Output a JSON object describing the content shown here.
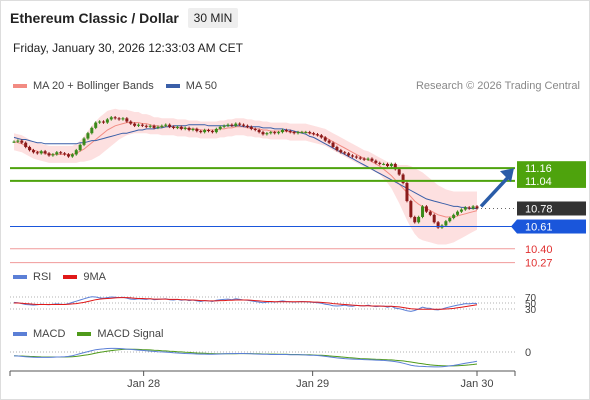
{
  "header": {
    "title": "Ethereum Classic / Dollar",
    "timeframe": "30 MIN",
    "timestamp": "Friday, January 30, 2026 12:33:03 AM CET",
    "credit": "Research © 2026 Trading Central"
  },
  "legends": {
    "price": [
      {
        "label": "MA 20 + Bollinger Bands",
        "color": "#f28b82"
      },
      {
        "label": "MA 50",
        "color": "#3a5fa8"
      }
    ],
    "rsi": [
      {
        "label": "RSI",
        "color": "#5b7fd6"
      },
      {
        "label": "9MA",
        "color": "#e01818"
      }
    ],
    "macd": [
      {
        "label": "MACD",
        "color": "#5b7fd6"
      },
      {
        "label": "MACD Signal",
        "color": "#4f9a1a"
      }
    ]
  },
  "colors": {
    "up": "#3a8a1a",
    "down": "#8b1a1a",
    "band_fill": "#fde0e0",
    "ma20": "#f28b82",
    "ma50": "#3a5fa8",
    "resistance": "#4ea30d",
    "support_blue": "#1a56db",
    "support_red": "#f19a9a",
    "current": "#333333",
    "arrow": "#2a5ca8"
  },
  "chart_data": [
    {
      "type": "candlestick",
      "name": "price",
      "x_ticks": [
        "Jan 28",
        "Jan 29",
        "Jan 30"
      ],
      "ylim": [
        10.2,
        11.85
      ],
      "levels": [
        {
          "value": 11.16,
          "label": "11.16",
          "kind": "resistance"
        },
        {
          "value": 11.04,
          "label": "11.04",
          "kind": "resistance"
        },
        {
          "value": 10.78,
          "label": "10.78",
          "kind": "current"
        },
        {
          "value": 10.61,
          "label": "10.61",
          "kind": "support"
        },
        {
          "value": 10.4,
          "label": "10.40",
          "kind": "support_minor"
        },
        {
          "value": 10.27,
          "label": "10.27",
          "kind": "support_minor"
        }
      ],
      "close": [
        11.41,
        11.42,
        11.4,
        11.36,
        11.33,
        11.31,
        11.3,
        11.32,
        11.3,
        11.28,
        11.29,
        11.31,
        11.3,
        11.29,
        11.27,
        11.29,
        11.33,
        11.38,
        11.44,
        11.49,
        11.54,
        11.59,
        11.6,
        11.59,
        11.62,
        11.64,
        11.63,
        11.62,
        11.63,
        11.6,
        11.58,
        11.56,
        11.57,
        11.56,
        11.55,
        11.56,
        11.54,
        11.55,
        11.56,
        11.57,
        11.55,
        11.54,
        11.55,
        11.53,
        11.54,
        11.52,
        11.53,
        11.51,
        11.5,
        11.52,
        11.51,
        11.5,
        11.53,
        11.55,
        11.56,
        11.57,
        11.56,
        11.58,
        11.57,
        11.56,
        11.55,
        11.53,
        11.52,
        11.5,
        11.48,
        11.49,
        11.5,
        11.49,
        11.5,
        11.52,
        11.51,
        11.5,
        11.49,
        11.5,
        11.5,
        11.5,
        11.49,
        11.48,
        11.47,
        11.45,
        11.42,
        11.4,
        11.36,
        11.33,
        11.31,
        11.3,
        11.28,
        11.27,
        11.26,
        11.25,
        11.24,
        11.25,
        11.23,
        11.21,
        11.2,
        11.2,
        11.18,
        11.2,
        11.15,
        11.1,
        11.02,
        10.85,
        10.7,
        10.65,
        10.7,
        10.8,
        10.75,
        10.72,
        10.65,
        10.6,
        10.62,
        10.66,
        10.69,
        10.72,
        10.75,
        10.77,
        10.79,
        10.78,
        10.8,
        10.78
      ],
      "ma20": [
        11.41,
        11.4,
        11.39,
        11.37,
        11.35,
        11.33,
        11.32,
        11.31,
        11.3,
        11.29,
        11.29,
        11.29,
        11.29,
        11.29,
        11.29,
        11.29,
        11.3,
        11.32,
        11.34,
        11.37,
        11.4,
        11.43,
        11.46,
        11.49,
        11.52,
        11.54,
        11.56,
        11.57,
        11.58,
        11.59,
        11.59,
        11.59,
        11.59,
        11.58,
        11.58,
        11.57,
        11.56,
        11.56,
        11.55,
        11.55,
        11.55,
        11.55,
        11.54,
        11.54,
        11.54,
        11.53,
        11.53,
        11.53,
        11.52,
        11.52,
        11.52,
        11.52,
        11.52,
        11.53,
        11.53,
        11.54,
        11.54,
        11.55,
        11.55,
        11.55,
        11.54,
        11.54,
        11.53,
        11.53,
        11.52,
        11.52,
        11.51,
        11.51,
        11.51,
        11.51,
        11.51,
        11.5,
        11.5,
        11.5,
        11.5,
        11.5,
        11.49,
        11.48,
        11.47,
        11.46,
        11.45,
        11.43,
        11.41,
        11.39,
        11.37,
        11.35,
        11.33,
        11.31,
        11.29,
        11.27,
        11.25,
        11.24,
        11.22,
        11.2,
        11.18,
        11.15,
        11.12,
        11.09,
        11.05,
        11.01,
        10.97,
        10.93,
        10.89,
        10.85,
        10.82,
        10.8,
        10.78,
        10.76,
        10.74,
        10.72,
        10.71,
        10.7,
        10.7,
        10.7,
        10.71,
        10.72,
        10.73,
        10.74,
        10.75,
        10.76
      ],
      "band_width": [
        0.08,
        0.08,
        0.08,
        0.08,
        0.08,
        0.08,
        0.08,
        0.08,
        0.08,
        0.08,
        0.08,
        0.08,
        0.08,
        0.08,
        0.08,
        0.08,
        0.09,
        0.1,
        0.12,
        0.14,
        0.16,
        0.17,
        0.18,
        0.18,
        0.18,
        0.17,
        0.16,
        0.14,
        0.13,
        0.12,
        0.11,
        0.1,
        0.1,
        0.09,
        0.09,
        0.09,
        0.08,
        0.08,
        0.08,
        0.08,
        0.08,
        0.08,
        0.08,
        0.08,
        0.08,
        0.08,
        0.08,
        0.08,
        0.08,
        0.08,
        0.08,
        0.08,
        0.08,
        0.08,
        0.08,
        0.08,
        0.08,
        0.08,
        0.08,
        0.08,
        0.08,
        0.08,
        0.08,
        0.08,
        0.08,
        0.08,
        0.08,
        0.08,
        0.08,
        0.08,
        0.08,
        0.08,
        0.08,
        0.08,
        0.08,
        0.08,
        0.08,
        0.08,
        0.08,
        0.08,
        0.08,
        0.08,
        0.08,
        0.08,
        0.08,
        0.08,
        0.08,
        0.08,
        0.08,
        0.08,
        0.08,
        0.08,
        0.08,
        0.08,
        0.08,
        0.09,
        0.1,
        0.12,
        0.15,
        0.18,
        0.22,
        0.26,
        0.29,
        0.31,
        0.32,
        0.32,
        0.31,
        0.3,
        0.29,
        0.28,
        0.27,
        0.26,
        0.25,
        0.24,
        0.23,
        0.22,
        0.21,
        0.2,
        0.19,
        0.18
      ],
      "ma50": [
        11.45,
        11.44,
        11.43,
        11.43,
        11.42,
        11.41,
        11.4,
        11.4,
        11.39,
        11.39,
        11.39,
        11.39,
        11.39,
        11.39,
        11.39,
        11.39,
        11.39,
        11.4,
        11.4,
        11.41,
        11.42,
        11.42,
        11.43,
        11.44,
        11.45,
        11.46,
        11.47,
        11.48,
        11.49,
        11.49,
        11.5,
        11.51,
        11.52,
        11.52,
        11.53,
        11.53,
        11.53,
        11.54,
        11.54,
        11.55,
        11.55,
        11.56,
        11.56,
        11.56,
        11.56,
        11.57,
        11.57,
        11.57,
        11.57,
        11.57,
        11.56,
        11.56,
        11.56,
        11.56,
        11.56,
        11.56,
        11.56,
        11.56,
        11.56,
        11.55,
        11.55,
        11.55,
        11.55,
        11.55,
        11.54,
        11.54,
        11.54,
        11.53,
        11.53,
        11.53,
        11.52,
        11.52,
        11.51,
        11.5,
        11.49,
        11.48,
        11.46,
        11.45,
        11.43,
        11.41,
        11.39,
        11.37,
        11.35,
        11.33,
        11.31,
        11.29,
        11.27,
        11.25,
        11.23,
        11.21,
        11.19,
        11.17,
        11.15,
        11.13,
        11.11,
        11.09,
        11.07,
        11.05,
        11.03,
        11.01,
        10.99,
        10.97,
        10.95,
        10.93,
        10.91,
        10.89,
        10.87,
        10.86,
        10.85,
        10.84,
        10.83,
        10.82,
        10.81,
        10.8,
        10.8,
        10.79,
        10.79,
        10.78,
        10.78,
        10.78
      ],
      "forecast": {
        "from": 10.78,
        "to": 11.16
      }
    },
    {
      "type": "line",
      "name": "RSI",
      "levels": [
        "70",
        "50",
        "30"
      ],
      "ylim": [
        0,
        100
      ],
      "series": [
        {
          "name": "RSI",
          "values": [
            52,
            51,
            48,
            45,
            44,
            43,
            44,
            46,
            45,
            44,
            46,
            47,
            46,
            45,
            48,
            52,
            56,
            60,
            64,
            68,
            71,
            70,
            67,
            66,
            68,
            70,
            69,
            68,
            69,
            66,
            63,
            62,
            64,
            63,
            62,
            64,
            61,
            62,
            63,
            64,
            61,
            60,
            62,
            59,
            61,
            58,
            60,
            57,
            55,
            58,
            57,
            55,
            59,
            61,
            62,
            63,
            61,
            64,
            62,
            60,
            59,
            57,
            55,
            53,
            51,
            53,
            54,
            53,
            55,
            57,
            55,
            54,
            53,
            54,
            55,
            54,
            53,
            52,
            51,
            49,
            46,
            44,
            41,
            40,
            41,
            43,
            40,
            39,
            42,
            41,
            40,
            43,
            40,
            38,
            39,
            40,
            36,
            39,
            33,
            31,
            28,
            24,
            22,
            25,
            30,
            36,
            33,
            32,
            28,
            27,
            30,
            34,
            37,
            40,
            43,
            45,
            48,
            47,
            49,
            48
          ]
        },
        {
          "name": "9MA",
          "values": [
            50,
            50,
            49,
            48,
            47,
            46,
            45,
            45,
            45,
            45,
            45,
            45,
            45,
            45,
            46,
            47,
            48,
            50,
            52,
            55,
            58,
            61,
            63,
            64,
            65,
            66,
            67,
            68,
            68,
            68,
            67,
            66,
            65,
            65,
            64,
            64,
            63,
            63,
            63,
            63,
            62,
            62,
            62,
            61,
            61,
            60,
            60,
            59,
            58,
            58,
            57,
            57,
            57,
            58,
            58,
            59,
            59,
            60,
            60,
            60,
            60,
            59,
            58,
            57,
            56,
            55,
            55,
            54,
            54,
            54,
            54,
            54,
            54,
            54,
            54,
            54,
            54,
            53,
            53,
            52,
            51,
            50,
            48,
            47,
            46,
            45,
            44,
            43,
            42,
            41,
            41,
            41,
            40,
            40,
            40,
            39,
            39,
            39,
            38,
            37,
            35,
            33,
            31,
            30,
            29,
            29,
            29,
            29,
            29,
            29,
            29,
            30,
            31,
            32,
            34,
            36,
            38,
            40,
            42,
            44
          ]
        }
      ]
    },
    {
      "type": "line",
      "name": "MACD",
      "levels": [
        "0"
      ],
      "ylim": [
        -0.1,
        0.1
      ],
      "series": [
        {
          "name": "MACD",
          "values": [
            -0.005,
            -0.006,
            -0.008,
            -0.01,
            -0.012,
            -0.013,
            -0.014,
            -0.014,
            -0.014,
            -0.014,
            -0.013,
            -0.012,
            -0.011,
            -0.01,
            -0.008,
            -0.004,
            0.002,
            0.008,
            0.014,
            0.02,
            0.026,
            0.031,
            0.034,
            0.036,
            0.038,
            0.039,
            0.039,
            0.038,
            0.037,
            0.035,
            0.033,
            0.031,
            0.029,
            0.027,
            0.025,
            0.023,
            0.021,
            0.019,
            0.018,
            0.017,
            0.015,
            0.013,
            0.012,
            0.01,
            0.009,
            0.008,
            0.007,
            0.006,
            0.005,
            0.005,
            0.004,
            0.004,
            0.005,
            0.006,
            0.007,
            0.008,
            0.008,
            0.009,
            0.009,
            0.009,
            0.008,
            0.007,
            0.006,
            0.005,
            0.004,
            0.004,
            0.003,
            0.003,
            0.003,
            0.003,
            0.003,
            0.002,
            0.002,
            0.001,
            0.001,
            0,
            -0.001,
            -0.002,
            -0.003,
            -0.005,
            -0.008,
            -0.011,
            -0.014,
            -0.017,
            -0.019,
            -0.021,
            -0.023,
            -0.024,
            -0.025,
            -0.026,
            -0.027,
            -0.028,
            -0.029,
            -0.03,
            -0.031,
            -0.032,
            -0.034,
            -0.036,
            -0.039,
            -0.043,
            -0.048,
            -0.054,
            -0.06,
            -0.064,
            -0.066,
            -0.067,
            -0.068,
            -0.069,
            -0.07,
            -0.07,
            -0.069,
            -0.067,
            -0.064,
            -0.061,
            -0.057,
            -0.053,
            -0.049,
            -0.045,
            -0.041,
            -0.037
          ]
        },
        {
          "name": "MACD Signal",
          "values": [
            -0.004,
            -0.005,
            -0.006,
            -0.007,
            -0.008,
            -0.009,
            -0.01,
            -0.011,
            -0.012,
            -0.012,
            -0.012,
            -0.012,
            -0.012,
            -0.012,
            -0.011,
            -0.01,
            -0.008,
            -0.005,
            -0.002,
            0.002,
            0.006,
            0.011,
            0.015,
            0.019,
            0.023,
            0.026,
            0.029,
            0.031,
            0.033,
            0.034,
            0.034,
            0.034,
            0.033,
            0.032,
            0.031,
            0.03,
            0.028,
            0.027,
            0.025,
            0.024,
            0.022,
            0.021,
            0.019,
            0.018,
            0.016,
            0.015,
            0.013,
            0.012,
            0.011,
            0.01,
            0.009,
            0.008,
            0.007,
            0.007,
            0.007,
            0.007,
            0.007,
            0.007,
            0.008,
            0.008,
            0.008,
            0.008,
            0.007,
            0.007,
            0.006,
            0.006,
            0.005,
            0.005,
            0.004,
            0.004,
            0.004,
            0.003,
            0.003,
            0.003,
            0.002,
            0.002,
            0.001,
            0,
            -0.001,
            -0.002,
            -0.003,
            -0.005,
            -0.007,
            -0.009,
            -0.011,
            -0.013,
            -0.015,
            -0.017,
            -0.019,
            -0.021,
            -0.022,
            -0.023,
            -0.024,
            -0.025,
            -0.026,
            -0.027,
            -0.028,
            -0.029,
            -0.031,
            -0.033,
            -0.035,
            -0.038,
            -0.041,
            -0.045,
            -0.049,
            -0.052,
            -0.055,
            -0.058,
            -0.06,
            -0.062,
            -0.063,
            -0.064,
            -0.064,
            -0.064,
            -0.063,
            -0.062,
            -0.06,
            -0.058,
            -0.056,
            -0.053
          ]
        }
      ]
    }
  ]
}
